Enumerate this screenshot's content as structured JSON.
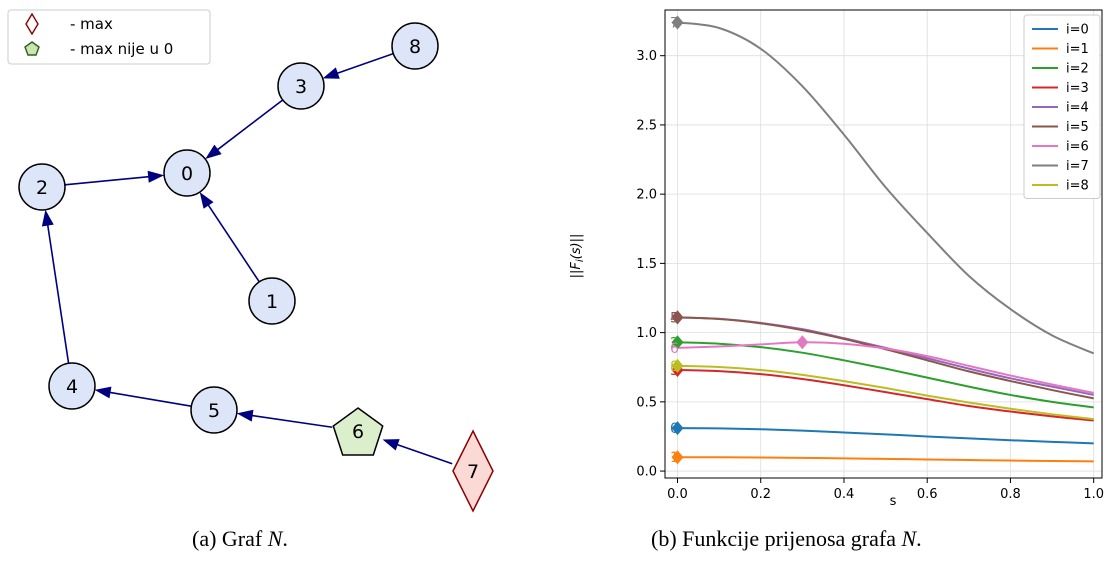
{
  "graph": {
    "legend": [
      {
        "symbol": "diamond",
        "label": "- max",
        "fill": "#ffffff",
        "stroke": "#8b0000"
      },
      {
        "symbol": "pentagon",
        "label": "- max nije u 0",
        "fill": "#c8e6b0",
        "stroke": "#2e5c1f"
      }
    ],
    "colors": {
      "node_fill": "#dde5f8",
      "edge": "#000080",
      "max_fill": "#fbd9d4",
      "pentagon_fill": "#dcefcc"
    },
    "nodes": [
      {
        "id": "0",
        "label": "0",
        "shape": "circle"
      },
      {
        "id": "1",
        "label": "1",
        "shape": "circle"
      },
      {
        "id": "2",
        "label": "2",
        "shape": "circle"
      },
      {
        "id": "3",
        "label": "3",
        "shape": "circle"
      },
      {
        "id": "4",
        "label": "4",
        "shape": "circle"
      },
      {
        "id": "5",
        "label": "5",
        "shape": "circle"
      },
      {
        "id": "6",
        "label": "6",
        "shape": "pentagon"
      },
      {
        "id": "7",
        "label": "7",
        "shape": "diamond"
      },
      {
        "id": "8",
        "label": "8",
        "shape": "circle"
      }
    ],
    "edges": [
      {
        "from": "8",
        "to": "3"
      },
      {
        "from": "3",
        "to": "0"
      },
      {
        "from": "2",
        "to": "0"
      },
      {
        "from": "1",
        "to": "0"
      },
      {
        "from": "4",
        "to": "2"
      },
      {
        "from": "5",
        "to": "4"
      },
      {
        "from": "6",
        "to": "5"
      },
      {
        "from": "7",
        "to": "6"
      }
    ]
  },
  "captions": {
    "a_prefix": "(a) Graf ",
    "a_var": "N",
    "a_suffix": ".",
    "b_prefix": "(b) Funkcije prijenosa grafa ",
    "b_var": "N",
    "b_suffix": "."
  },
  "chart_data": {
    "type": "line",
    "xlabel": "s",
    "ylabel": "||F_i(s)||",
    "xlim": [
      -0.03,
      1.02
    ],
    "ylim": [
      -0.05,
      3.33
    ],
    "xticks": [
      "0.0",
      "0.2",
      "0.4",
      "0.6",
      "0.8",
      "1.0"
    ],
    "yticks": [
      "0.0",
      "0.5",
      "1.0",
      "1.5",
      "2.0",
      "2.5",
      "3.0"
    ],
    "grid": true,
    "legend_position": "top-right",
    "x": [
      0.0,
      0.1,
      0.2,
      0.3,
      0.4,
      0.5,
      0.6,
      0.7,
      0.8,
      0.9,
      1.0
    ],
    "series": [
      {
        "name": "i=0",
        "color": "#1f77b4",
        "values": [
          0.31,
          0.308,
          0.302,
          0.292,
          0.279,
          0.265,
          0.25,
          0.236,
          0.223,
          0.211,
          0.2
        ],
        "max": {
          "x": 0.0,
          "y": 0.31
        },
        "label": "0"
      },
      {
        "name": "i=1",
        "color": "#ff7f0e",
        "values": [
          0.1,
          0.1,
          0.098,
          0.095,
          0.092,
          0.088,
          0.084,
          0.08,
          0.076,
          0.073,
          0.07
        ],
        "max": {
          "x": 0.0,
          "y": 0.1
        },
        "label": "1"
      },
      {
        "name": "i=2",
        "color": "#2ca02c",
        "values": [
          0.93,
          0.92,
          0.895,
          0.855,
          0.8,
          0.74,
          0.675,
          0.61,
          0.55,
          0.5,
          0.46
        ],
        "max": {
          "x": 0.0,
          "y": 0.93
        },
        "label": "2"
      },
      {
        "name": "i=3",
        "color": "#d62728",
        "values": [
          0.73,
          0.722,
          0.7,
          0.665,
          0.62,
          0.57,
          0.52,
          0.47,
          0.43,
          0.395,
          0.365
        ],
        "max": {
          "x": 0.0,
          "y": 0.73
        },
        "label": "3"
      },
      {
        "name": "i=4",
        "color": "#9467bd",
        "values": [
          1.11,
          1.1,
          1.07,
          1.025,
          0.96,
          0.89,
          0.815,
          0.74,
          0.67,
          0.61,
          0.55
        ],
        "max": {
          "x": 0.0,
          "y": 1.11
        },
        "label": "4"
      },
      {
        "name": "i=5",
        "color": "#8c564b",
        "values": [
          1.11,
          1.098,
          1.067,
          1.018,
          0.955,
          0.88,
          0.8,
          0.72,
          0.65,
          0.585,
          0.525
        ],
        "max": {
          "x": 0.0,
          "y": 1.11
        },
        "label": "5"
      },
      {
        "name": "i=6",
        "color": "#e377c2",
        "values": [
          0.89,
          0.9,
          0.915,
          0.93,
          0.92,
          0.885,
          0.83,
          0.76,
          0.69,
          0.625,
          0.565
        ],
        "max": {
          "x": 0.3,
          "y": 0.93
        },
        "label": "6"
      },
      {
        "name": "i=7",
        "color": "#7f7f7f",
        "values": [
          3.24,
          3.2,
          3.05,
          2.78,
          2.43,
          2.05,
          1.72,
          1.41,
          1.17,
          0.98,
          0.85
        ],
        "max": {
          "x": 0.0,
          "y": 3.24
        },
        "label": "7"
      },
      {
        "name": "i=8",
        "color": "#bcbd22",
        "values": [
          0.76,
          0.752,
          0.73,
          0.695,
          0.65,
          0.6,
          0.545,
          0.495,
          0.45,
          0.41,
          0.375
        ],
        "max": {
          "x": 0.0,
          "y": 0.76
        },
        "label": "8"
      }
    ]
  }
}
